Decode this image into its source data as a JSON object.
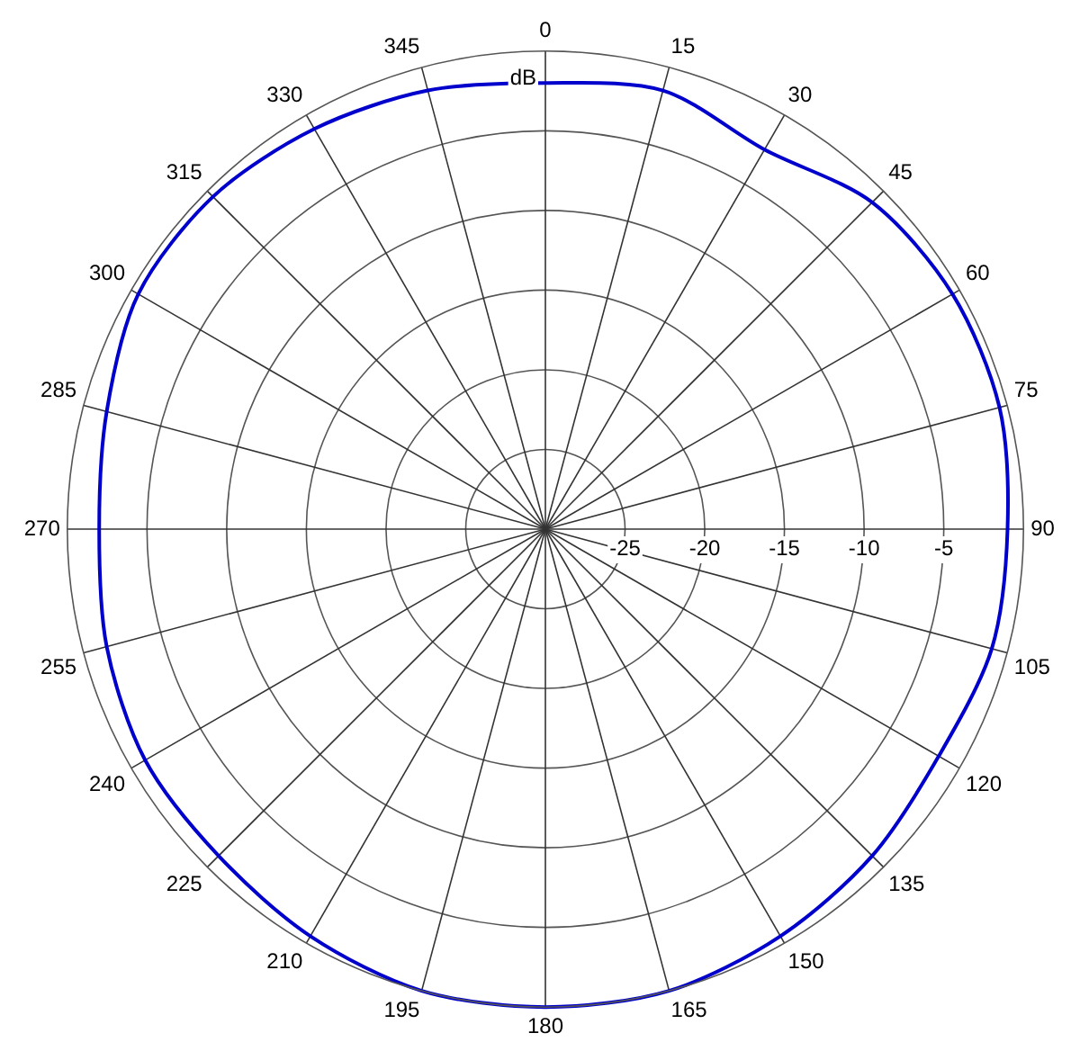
{
  "chart_data": {
    "type": "radar",
    "ylabel": "dB",
    "categories": [
      "0",
      "15",
      "30",
      "45",
      "60",
      "75",
      "90",
      "105",
      "120",
      "135",
      "150",
      "165",
      "180",
      "195",
      "210",
      "225",
      "240",
      "255",
      "270",
      "285",
      "300",
      "315",
      "330",
      "345"
    ],
    "series": [
      {
        "color": "#0000cc",
        "values": [
          -2,
          -1.5,
          -2.5,
          -1,
          -0.5,
          -0.5,
          -1,
          -1,
          -1.5,
          -1,
          -0.5,
          0,
          0,
          0,
          -0.5,
          -1,
          -1,
          -1.5,
          -2,
          -1.5,
          -0.5,
          -0.5,
          -1,
          -1.5
        ]
      }
    ],
    "ylim": [
      -30,
      0
    ],
    "yticks": [
      -25,
      -20,
      -15,
      -10,
      -5
    ],
    "grid": true,
    "legend": false,
    "marker": "none",
    "line_style": "solid"
  }
}
